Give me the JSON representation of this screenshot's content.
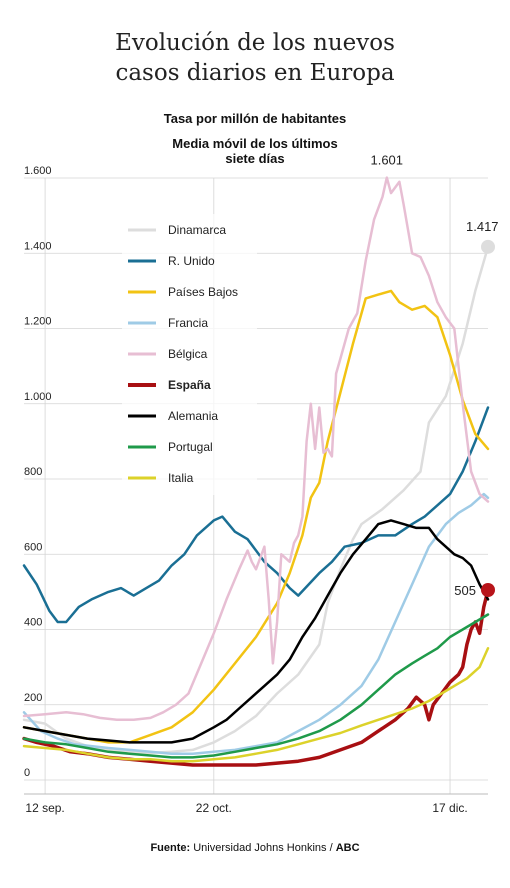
{
  "title_line1": "Evolución de los nuevos",
  "title_line2": "casos diarios en Europa",
  "subtitle": "Tasa por millón de habitantes",
  "subtitle2_line1": "Media móvil de los últimos",
  "subtitle2_line2": "siete días",
  "source_label": "Fuente:",
  "source_text": "Universidad Johns Honkins /",
  "source_brand": "ABC",
  "chart_data": {
    "type": "line",
    "ylim": [
      0,
      1600
    ],
    "yticks": [
      0,
      200,
      400,
      600,
      800,
      1000,
      1200,
      1400,
      1600
    ],
    "ytick_labels": [
      "0",
      "200",
      "400",
      "600",
      "800",
      "1.000",
      "1.200",
      "1.400",
      "1.600"
    ],
    "xlim": [
      0,
      110
    ],
    "xticks": [
      {
        "x": 5,
        "label": "12 sep."
      },
      {
        "x": 45,
        "label": "22 oct."
      },
      {
        "x": 101,
        "label": "17 dic."
      }
    ],
    "grid": true,
    "legend_position": "top-left",
    "annotations": [
      {
        "text": "1.601",
        "series": "Bélgica",
        "x": 86,
        "y": 1601
      },
      {
        "text": "1.417",
        "series": "Dinamarca",
        "x": 110,
        "y": 1417
      },
      {
        "text": "505",
        "series": "España",
        "x": 110,
        "y": 505
      }
    ],
    "series": [
      {
        "name": "Dinamarca",
        "color": "#dddddd",
        "width": 2.5,
        "bold": false,
        "points": [
          [
            0,
            160
          ],
          [
            5,
            150
          ],
          [
            10,
            110
          ],
          [
            15,
            90
          ],
          [
            20,
            80
          ],
          [
            25,
            75
          ],
          [
            30,
            72
          ],
          [
            35,
            75
          ],
          [
            40,
            80
          ],
          [
            45,
            100
          ],
          [
            50,
            130
          ],
          [
            55,
            170
          ],
          [
            60,
            230
          ],
          [
            65,
            280
          ],
          [
            70,
            360
          ],
          [
            72,
            470
          ],
          [
            75,
            560
          ],
          [
            78,
            640
          ],
          [
            80,
            680
          ],
          [
            85,
            720
          ],
          [
            90,
            770
          ],
          [
            94,
            820
          ],
          [
            96,
            950
          ],
          [
            100,
            1020
          ],
          [
            104,
            1160
          ],
          [
            107,
            1300
          ],
          [
            110,
            1417
          ]
        ]
      },
      {
        "name": "R. Unido",
        "color": "#1a6f94",
        "width": 2.5,
        "bold": false,
        "points": [
          [
            0,
            570
          ],
          [
            3,
            520
          ],
          [
            6,
            450
          ],
          [
            8,
            420
          ],
          [
            10,
            420
          ],
          [
            13,
            460
          ],
          [
            16,
            480
          ],
          [
            20,
            500
          ],
          [
            23,
            510
          ],
          [
            26,
            490
          ],
          [
            29,
            510
          ],
          [
            32,
            530
          ],
          [
            35,
            570
          ],
          [
            38,
            600
          ],
          [
            41,
            650
          ],
          [
            45,
            690
          ],
          [
            47,
            700
          ],
          [
            50,
            660
          ],
          [
            53,
            640
          ],
          [
            57,
            580
          ],
          [
            60,
            550
          ],
          [
            63,
            510
          ],
          [
            65,
            490
          ],
          [
            70,
            550
          ],
          [
            73,
            580
          ],
          [
            76,
            620
          ],
          [
            80,
            630
          ],
          [
            84,
            650
          ],
          [
            88,
            650
          ],
          [
            92,
            680
          ],
          [
            95,
            700
          ],
          [
            98,
            730
          ],
          [
            101,
            760
          ],
          [
            104,
            820
          ],
          [
            107,
            900
          ],
          [
            110,
            990
          ]
        ]
      },
      {
        "name": "Países Bajos",
        "color": "#f2c313",
        "width": 2.5,
        "bold": false,
        "points": [
          [
            0,
            140
          ],
          [
            5,
            130
          ],
          [
            10,
            120
          ],
          [
            15,
            110
          ],
          [
            20,
            100
          ],
          [
            25,
            100
          ],
          [
            30,
            120
          ],
          [
            35,
            140
          ],
          [
            40,
            180
          ],
          [
            45,
            240
          ],
          [
            50,
            310
          ],
          [
            55,
            380
          ],
          [
            60,
            470
          ],
          [
            63,
            550
          ],
          [
            66,
            650
          ],
          [
            68,
            750
          ],
          [
            70,
            790
          ],
          [
            72,
            900
          ],
          [
            75,
            1030
          ],
          [
            78,
            1160
          ],
          [
            81,
            1280
          ],
          [
            84,
            1290
          ],
          [
            87,
            1300
          ],
          [
            89,
            1270
          ],
          [
            92,
            1250
          ],
          [
            95,
            1260
          ],
          [
            98,
            1230
          ],
          [
            101,
            1130
          ],
          [
            104,
            1010
          ],
          [
            107,
            920
          ],
          [
            110,
            880
          ]
        ]
      },
      {
        "name": "Francia",
        "color": "#9fcbe6",
        "width": 2.5,
        "bold": false,
        "points": [
          [
            0,
            180
          ],
          [
            4,
            130
          ],
          [
            8,
            110
          ],
          [
            12,
            95
          ],
          [
            16,
            90
          ],
          [
            20,
            85
          ],
          [
            25,
            80
          ],
          [
            30,
            75
          ],
          [
            35,
            70
          ],
          [
            40,
            70
          ],
          [
            45,
            75
          ],
          [
            50,
            80
          ],
          [
            55,
            90
          ],
          [
            60,
            100
          ],
          [
            65,
            130
          ],
          [
            70,
            160
          ],
          [
            75,
            200
          ],
          [
            80,
            250
          ],
          [
            84,
            320
          ],
          [
            88,
            420
          ],
          [
            92,
            520
          ],
          [
            96,
            620
          ],
          [
            100,
            680
          ],
          [
            103,
            710
          ],
          [
            106,
            730
          ],
          [
            109,
            760
          ],
          [
            110,
            750
          ]
        ]
      },
      {
        "name": "Bélgica",
        "color": "#e7bed3",
        "width": 2.5,
        "bold": false,
        "points": [
          [
            0,
            170
          ],
          [
            5,
            175
          ],
          [
            10,
            180
          ],
          [
            14,
            175
          ],
          [
            18,
            165
          ],
          [
            22,
            160
          ],
          [
            26,
            160
          ],
          [
            30,
            165
          ],
          [
            33,
            180
          ],
          [
            36,
            200
          ],
          [
            39,
            230
          ],
          [
            42,
            310
          ],
          [
            45,
            390
          ],
          [
            48,
            480
          ],
          [
            51,
            560
          ],
          [
            53,
            610
          ],
          [
            54,
            580
          ],
          [
            55,
            560
          ],
          [
            56,
            590
          ],
          [
            57,
            620
          ],
          [
            58,
            480
          ],
          [
            59,
            310
          ],
          [
            60,
            420
          ],
          [
            61,
            600
          ],
          [
            62,
            590
          ],
          [
            63,
            580
          ],
          [
            64,
            630
          ],
          [
            65,
            650
          ],
          [
            66,
            700
          ],
          [
            67,
            900
          ],
          [
            68,
            1000
          ],
          [
            69,
            880
          ],
          [
            70,
            990
          ],
          [
            71,
            870
          ],
          [
            72,
            880
          ],
          [
            73,
            860
          ],
          [
            74,
            1080
          ],
          [
            75,
            1120
          ],
          [
            77,
            1200
          ],
          [
            79,
            1240
          ],
          [
            81,
            1380
          ],
          [
            83,
            1490
          ],
          [
            85,
            1550
          ],
          [
            86,
            1601
          ],
          [
            87,
            1560
          ],
          [
            89,
            1590
          ],
          [
            90,
            1530
          ],
          [
            92,
            1400
          ],
          [
            94,
            1390
          ],
          [
            96,
            1340
          ],
          [
            98,
            1270
          ],
          [
            100,
            1230
          ],
          [
            102,
            1200
          ],
          [
            104,
            1000
          ],
          [
            106,
            820
          ],
          [
            108,
            760
          ],
          [
            110,
            740
          ]
        ]
      },
      {
        "name": "España",
        "color": "#a80f12",
        "width": 3.5,
        "bold": true,
        "points": [
          [
            0,
            110
          ],
          [
            3,
            100
          ],
          [
            7,
            90
          ],
          [
            11,
            75
          ],
          [
            15,
            70
          ],
          [
            20,
            60
          ],
          [
            25,
            55
          ],
          [
            30,
            50
          ],
          [
            35,
            45
          ],
          [
            40,
            40
          ],
          [
            45,
            40
          ],
          [
            50,
            40
          ],
          [
            55,
            40
          ],
          [
            60,
            45
          ],
          [
            65,
            50
          ],
          [
            70,
            60
          ],
          [
            75,
            80
          ],
          [
            80,
            100
          ],
          [
            84,
            130
          ],
          [
            88,
            160
          ],
          [
            91,
            190
          ],
          [
            93,
            220
          ],
          [
            95,
            200
          ],
          [
            96,
            160
          ],
          [
            97,
            200
          ],
          [
            99,
            230
          ],
          [
            101,
            260
          ],
          [
            103,
            280
          ],
          [
            104,
            300
          ],
          [
            105,
            360
          ],
          [
            106,
            400
          ],
          [
            107,
            420
          ],
          [
            108,
            390
          ],
          [
            109,
            460
          ],
          [
            110,
            505
          ]
        ]
      },
      {
        "name": "Alemania",
        "color": "#000000",
        "width": 2.5,
        "bold": false,
        "points": [
          [
            0,
            140
          ],
          [
            5,
            130
          ],
          [
            10,
            120
          ],
          [
            15,
            110
          ],
          [
            20,
            105
          ],
          [
            25,
            100
          ],
          [
            30,
            100
          ],
          [
            35,
            100
          ],
          [
            40,
            110
          ],
          [
            45,
            140
          ],
          [
            48,
            160
          ],
          [
            51,
            190
          ],
          [
            54,
            220
          ],
          [
            57,
            250
          ],
          [
            60,
            280
          ],
          [
            63,
            320
          ],
          [
            66,
            380
          ],
          [
            69,
            430
          ],
          [
            72,
            490
          ],
          [
            75,
            550
          ],
          [
            78,
            600
          ],
          [
            81,
            640
          ],
          [
            84,
            680
          ],
          [
            87,
            690
          ],
          [
            90,
            680
          ],
          [
            93,
            670
          ],
          [
            96,
            670
          ],
          [
            98,
            640
          ],
          [
            100,
            620
          ],
          [
            102,
            600
          ],
          [
            104,
            590
          ],
          [
            106,
            570
          ],
          [
            108,
            520
          ],
          [
            110,
            480
          ]
        ]
      },
      {
        "name": "Portugal",
        "color": "#1f9a4a",
        "width": 2.5,
        "bold": false,
        "points": [
          [
            0,
            110
          ],
          [
            5,
            100
          ],
          [
            10,
            95
          ],
          [
            15,
            85
          ],
          [
            20,
            75
          ],
          [
            25,
            70
          ],
          [
            30,
            65
          ],
          [
            35,
            60
          ],
          [
            40,
            60
          ],
          [
            45,
            65
          ],
          [
            50,
            75
          ],
          [
            55,
            85
          ],
          [
            60,
            95
          ],
          [
            65,
            110
          ],
          [
            70,
            130
          ],
          [
            75,
            160
          ],
          [
            80,
            200
          ],
          [
            84,
            240
          ],
          [
            88,
            280
          ],
          [
            92,
            310
          ],
          [
            95,
            330
          ],
          [
            98,
            350
          ],
          [
            101,
            380
          ],
          [
            104,
            400
          ],
          [
            107,
            420
          ],
          [
            110,
            440
          ]
        ]
      },
      {
        "name": "Italia",
        "color": "#dcd22a",
        "width": 2.5,
        "bold": false,
        "points": [
          [
            0,
            90
          ],
          [
            5,
            85
          ],
          [
            10,
            80
          ],
          [
            15,
            70
          ],
          [
            20,
            60
          ],
          [
            25,
            55
          ],
          [
            30,
            55
          ],
          [
            35,
            50
          ],
          [
            40,
            50
          ],
          [
            45,
            55
          ],
          [
            50,
            60
          ],
          [
            55,
            70
          ],
          [
            60,
            80
          ],
          [
            65,
            95
          ],
          [
            70,
            110
          ],
          [
            75,
            125
          ],
          [
            80,
            145
          ],
          [
            84,
            160
          ],
          [
            88,
            175
          ],
          [
            92,
            190
          ],
          [
            96,
            210
          ],
          [
            99,
            230
          ],
          [
            102,
            250
          ],
          [
            105,
            270
          ],
          [
            108,
            300
          ],
          [
            110,
            350
          ]
        ]
      }
    ]
  }
}
